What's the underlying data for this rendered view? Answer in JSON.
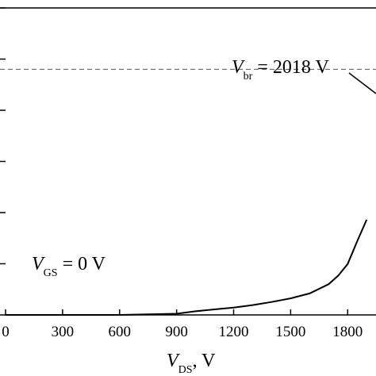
{
  "chart_data": {
    "type": "line",
    "xlabel": {
      "symbol": "V",
      "subscript": "DS",
      "unit": ", V"
    },
    "xlim": [
      0,
      1900
    ],
    "x_ticks": [
      {
        "value": 0,
        "label": "0"
      },
      {
        "value": 300,
        "label": "300"
      },
      {
        "value": 600,
        "label": "600"
      },
      {
        "value": 900,
        "label": "900"
      },
      {
        "value": 1200,
        "label": "1200"
      },
      {
        "value": 1500,
        "label": "1500"
      },
      {
        "value": 1800,
        "label": "1800"
      }
    ],
    "y_tick_count": 6,
    "grid": false,
    "series": [
      {
        "x": [
          0,
          300,
          600,
          750,
          900,
          1000,
          1100,
          1200,
          1300,
          1400,
          1500,
          1600,
          1700,
          1750,
          1800,
          1850,
          1900
        ],
        "y": [
          0,
          0,
          0,
          0.01,
          0.02,
          0.06,
          0.09,
          0.12,
          0.16,
          0.21,
          0.27,
          0.35,
          0.5,
          0.64,
          0.83,
          1.2,
          1.55
        ]
      }
    ],
    "ylim": [
      0,
      5.0
    ],
    "reference_line": {
      "style": "dashed",
      "y": 4.0
    },
    "annotations": [
      {
        "symbol": "V",
        "subscript": "br",
        "text": " = 2018 V",
        "arrow": true
      },
      {
        "symbol": "V",
        "subscript": "GS",
        "text": " = 0 V"
      }
    ]
  }
}
